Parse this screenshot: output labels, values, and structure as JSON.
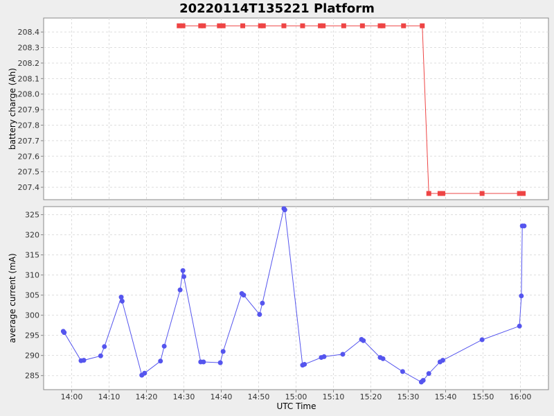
{
  "chart_data": {
    "title": "20220114T135221 Platform",
    "xlabel": "UTC Time",
    "x_ticks": [
      "14:00",
      "14:10",
      "14:20",
      "14:30",
      "14:40",
      "14:50",
      "15:00",
      "15:10",
      "15:20",
      "15:30",
      "15:40",
      "15:50",
      "16:00"
    ],
    "x_range": [
      "13:52:30",
      "16:07:30"
    ],
    "colors": {
      "battery": "#ee4444",
      "current": "#5555ee"
    },
    "panels": [
      {
        "type": "line",
        "ylabel": "battery charge (Ah)",
        "ylim": [
          207.32,
          208.49
        ],
        "y_ticks": [
          207.4,
          207.5,
          207.6,
          207.7,
          207.8,
          207.9,
          208.0,
          208.1,
          208.2,
          208.3,
          208.4
        ],
        "grid": true,
        "marker": "square",
        "series": [
          {
            "x": [
              "14:28:45",
              "14:29:45",
              "14:34:30",
              "14:35:15",
              "14:39:30",
              "14:40:30",
              "14:45:45",
              "14:50:30",
              "14:51:15",
              "14:56:45",
              "15:01:45",
              "15:06:30",
              "15:07:15",
              "15:12:45",
              "15:17:45",
              "15:22:30",
              "15:23:15",
              "15:28:45",
              "15:33:45",
              "15:35:30",
              "15:38:30",
              "15:39:15",
              "15:49:45",
              "15:59:45",
              "16:00:45"
            ],
            "y": [
              208.44,
              208.44,
              208.44,
              208.44,
              208.44,
              208.44,
              208.44,
              208.44,
              208.44,
              208.44,
              208.44,
              208.44,
              208.44,
              208.44,
              208.44,
              208.44,
              208.44,
              208.44,
              208.44,
              207.36,
              207.36,
              207.36,
              207.36,
              207.36,
              207.36
            ]
          }
        ]
      },
      {
        "type": "line",
        "ylabel": "average current (mA)",
        "ylim": [
          281.5,
          327
        ],
        "y_ticks": [
          285,
          290,
          295,
          300,
          305,
          310,
          315,
          320,
          325
        ],
        "grid": true,
        "marker": "circle",
        "series": [
          {
            "x": [
              "13:57:45",
              "13:58:00",
              "14:02:30",
              "14:03:15",
              "14:07:45",
              "14:08:45",
              "14:13:15",
              "14:13:30",
              "14:18:45",
              "14:19:30",
              "14:23:45",
              "14:24:45",
              "14:29:00",
              "14:29:45",
              "14:30:00",
              "14:34:30",
              "14:35:15",
              "14:39:45",
              "14:40:30",
              "14:45:30",
              "14:46:00",
              "14:50:15",
              "14:51:00",
              "14:56:45",
              "14:57:00",
              "15:01:45",
              "15:02:15",
              "15:06:45",
              "15:07:30",
              "15:12:30",
              "15:17:30",
              "15:18:00",
              "15:22:30",
              "15:23:15",
              "15:28:30",
              "15:33:30",
              "15:34:00",
              "15:35:30",
              "15:38:30",
              "15:39:15",
              "15:49:45",
              "15:59:45",
              "16:00:15",
              "16:00:30",
              "16:01:00"
            ],
            "y": [
              296.0,
              295.7,
              288.7,
              288.8,
              289.9,
              292.2,
              304.5,
              303.5,
              285.1,
              285.6,
              288.6,
              292.3,
              306.3,
              311.1,
              309.6,
              288.4,
              288.4,
              288.2,
              291.0,
              305.4,
              305.0,
              300.2,
              303.0,
              326.5,
              326.2,
              287.6,
              287.8,
              289.5,
              289.7,
              290.3,
              294.0,
              293.7,
              289.5,
              289.2,
              286.0,
              283.4,
              283.8,
              285.5,
              288.4,
              288.8,
              293.9,
              297.3,
              304.8,
              322.2,
              322.2
            ]
          }
        ]
      }
    ]
  }
}
